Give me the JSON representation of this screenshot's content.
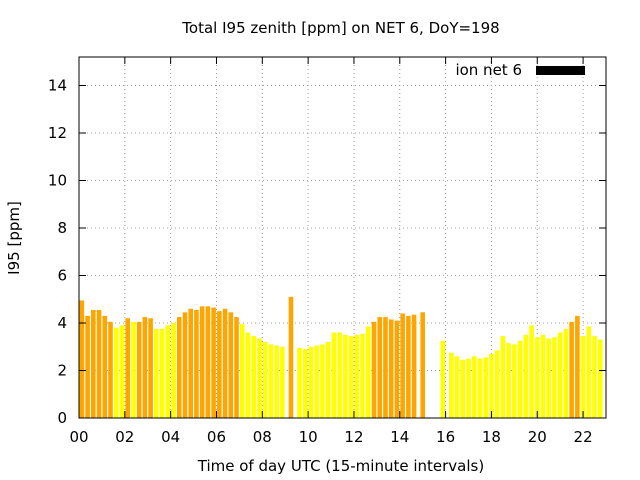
{
  "chart_data": {
    "type": "bar",
    "title": "Total I95 zenith [ppm] on NET 6, DoY=198",
    "xlabel": "Time of day UTC (15-minute intervals)",
    "ylabel": "I95 [ppm]",
    "xlim": [
      0,
      23
    ],
    "ylim": [
      0,
      15.2
    ],
    "grid": true,
    "legend_position": "top-right",
    "x_ticks": [
      {
        "value": 0,
        "label": "00"
      },
      {
        "value": 2,
        "label": "02"
      },
      {
        "value": 4,
        "label": "04"
      },
      {
        "value": 6,
        "label": "06"
      },
      {
        "value": 8,
        "label": "08"
      },
      {
        "value": 10,
        "label": "10"
      },
      {
        "value": 12,
        "label": "12"
      },
      {
        "value": 14,
        "label": "14"
      },
      {
        "value": 16,
        "label": "16"
      },
      {
        "value": 18,
        "label": "18"
      },
      {
        "value": 20,
        "label": "20"
      },
      {
        "value": 22,
        "label": "22"
      }
    ],
    "y_ticks": [
      {
        "value": 0,
        "label": "0"
      },
      {
        "value": 2,
        "label": "2"
      },
      {
        "value": 4,
        "label": "4"
      },
      {
        "value": 6,
        "label": "6"
      },
      {
        "value": 8,
        "label": "8"
      },
      {
        "value": 10,
        "label": "10"
      },
      {
        "value": 12,
        "label": "12"
      },
      {
        "value": 14,
        "label": "14"
      }
    ],
    "legend": {
      "label": "ion net 6",
      "color": "#000000"
    },
    "colors": {
      "orange": "#FFA500",
      "yellow": "#FFFF00"
    },
    "bars": [
      {
        "x": 0.0,
        "value": 3.9,
        "color": "yellow"
      },
      {
        "x": 0.125,
        "value": 4.95,
        "color": "orange"
      },
      {
        "x": 0.375,
        "value": 4.3,
        "color": "orange"
      },
      {
        "x": 0.625,
        "value": 4.55,
        "color": "orange"
      },
      {
        "x": 0.875,
        "value": 4.55,
        "color": "orange"
      },
      {
        "x": 1.125,
        "value": 4.3,
        "color": "orange"
      },
      {
        "x": 1.375,
        "value": 4.05,
        "color": "orange"
      },
      {
        "x": 1.625,
        "value": 3.8,
        "color": "yellow"
      },
      {
        "x": 1.875,
        "value": 3.9,
        "color": "yellow"
      },
      {
        "x": 2.125,
        "value": 4.2,
        "color": "orange"
      },
      {
        "x": 2.375,
        "value": 4.05,
        "color": "yellow"
      },
      {
        "x": 2.625,
        "value": 4.05,
        "color": "orange"
      },
      {
        "x": 2.875,
        "value": 4.25,
        "color": "orange"
      },
      {
        "x": 3.125,
        "value": 4.2,
        "color": "orange"
      },
      {
        "x": 3.375,
        "value": 3.75,
        "color": "yellow"
      },
      {
        "x": 3.625,
        "value": 3.75,
        "color": "yellow"
      },
      {
        "x": 3.875,
        "value": 3.9,
        "color": "yellow"
      },
      {
        "x": 4.125,
        "value": 4.0,
        "color": "yellow"
      },
      {
        "x": 4.375,
        "value": 4.25,
        "color": "orange"
      },
      {
        "x": 4.625,
        "value": 4.45,
        "color": "orange"
      },
      {
        "x": 4.875,
        "value": 4.6,
        "color": "orange"
      },
      {
        "x": 5.125,
        "value": 4.55,
        "color": "orange"
      },
      {
        "x": 5.375,
        "value": 4.7,
        "color": "orange"
      },
      {
        "x": 5.625,
        "value": 4.7,
        "color": "orange"
      },
      {
        "x": 5.875,
        "value": 4.65,
        "color": "orange"
      },
      {
        "x": 6.125,
        "value": 4.5,
        "color": "orange"
      },
      {
        "x": 6.375,
        "value": 4.6,
        "color": "orange"
      },
      {
        "x": 6.625,
        "value": 4.45,
        "color": "orange"
      },
      {
        "x": 6.875,
        "value": 4.25,
        "color": "orange"
      },
      {
        "x": 7.125,
        "value": 3.95,
        "color": "yellow"
      },
      {
        "x": 7.375,
        "value": 3.6,
        "color": "yellow"
      },
      {
        "x": 7.625,
        "value": 3.45,
        "color": "yellow"
      },
      {
        "x": 7.875,
        "value": 3.35,
        "color": "yellow"
      },
      {
        "x": 8.125,
        "value": 3.2,
        "color": "yellow"
      },
      {
        "x": 8.375,
        "value": 3.1,
        "color": "yellow"
      },
      {
        "x": 8.625,
        "value": 3.05,
        "color": "yellow"
      },
      {
        "x": 8.875,
        "value": 3.0,
        "color": "yellow"
      },
      {
        "x": 9.25,
        "value": 5.1,
        "color": "orange"
      },
      {
        "x": 9.625,
        "value": 2.95,
        "color": "yellow"
      },
      {
        "x": 9.875,
        "value": 2.9,
        "color": "yellow"
      },
      {
        "x": 10.125,
        "value": 3.0,
        "color": "yellow"
      },
      {
        "x": 10.375,
        "value": 3.05,
        "color": "yellow"
      },
      {
        "x": 10.625,
        "value": 3.1,
        "color": "yellow"
      },
      {
        "x": 10.875,
        "value": 3.2,
        "color": "yellow"
      },
      {
        "x": 11.125,
        "value": 3.6,
        "color": "yellow"
      },
      {
        "x": 11.375,
        "value": 3.6,
        "color": "yellow"
      },
      {
        "x": 11.625,
        "value": 3.5,
        "color": "yellow"
      },
      {
        "x": 11.875,
        "value": 3.45,
        "color": "yellow"
      },
      {
        "x": 12.125,
        "value": 3.5,
        "color": "yellow"
      },
      {
        "x": 12.375,
        "value": 3.55,
        "color": "yellow"
      },
      {
        "x": 12.625,
        "value": 3.85,
        "color": "yellow"
      },
      {
        "x": 12.875,
        "value": 4.05,
        "color": "orange"
      },
      {
        "x": 13.125,
        "value": 4.25,
        "color": "orange"
      },
      {
        "x": 13.375,
        "value": 4.25,
        "color": "orange"
      },
      {
        "x": 13.625,
        "value": 4.15,
        "color": "orange"
      },
      {
        "x": 13.875,
        "value": 4.1,
        "color": "orange"
      },
      {
        "x": 14.125,
        "value": 4.4,
        "color": "orange"
      },
      {
        "x": 14.375,
        "value": 4.3,
        "color": "orange"
      },
      {
        "x": 14.625,
        "value": 4.35,
        "color": "orange"
      },
      {
        "x": 15.0,
        "value": 4.45,
        "color": "orange"
      },
      {
        "x": 15.875,
        "value": 3.25,
        "color": "yellow"
      },
      {
        "x": 16.25,
        "value": 2.75,
        "color": "yellow"
      },
      {
        "x": 16.5,
        "value": 2.6,
        "color": "yellow"
      },
      {
        "x": 16.75,
        "value": 2.45,
        "color": "yellow"
      },
      {
        "x": 17.0,
        "value": 2.5,
        "color": "yellow"
      },
      {
        "x": 17.25,
        "value": 2.6,
        "color": "yellow"
      },
      {
        "x": 17.5,
        "value": 2.5,
        "color": "yellow"
      },
      {
        "x": 17.75,
        "value": 2.55,
        "color": "yellow"
      },
      {
        "x": 18.0,
        "value": 2.7,
        "color": "yellow"
      },
      {
        "x": 18.25,
        "value": 2.85,
        "color": "yellow"
      },
      {
        "x": 18.5,
        "value": 3.45,
        "color": "yellow"
      },
      {
        "x": 18.75,
        "value": 3.15,
        "color": "yellow"
      },
      {
        "x": 19.0,
        "value": 3.1,
        "color": "yellow"
      },
      {
        "x": 19.25,
        "value": 3.25,
        "color": "yellow"
      },
      {
        "x": 19.5,
        "value": 3.5,
        "color": "yellow"
      },
      {
        "x": 19.75,
        "value": 3.9,
        "color": "yellow"
      },
      {
        "x": 20.0,
        "value": 3.4,
        "color": "yellow"
      },
      {
        "x": 20.25,
        "value": 3.5,
        "color": "yellow"
      },
      {
        "x": 20.5,
        "value": 3.35,
        "color": "yellow"
      },
      {
        "x": 20.75,
        "value": 3.4,
        "color": "yellow"
      },
      {
        "x": 21.0,
        "value": 3.6,
        "color": "yellow"
      },
      {
        "x": 21.25,
        "value": 3.75,
        "color": "yellow"
      },
      {
        "x": 21.5,
        "value": 4.05,
        "color": "orange"
      },
      {
        "x": 21.75,
        "value": 4.3,
        "color": "orange"
      },
      {
        "x": 22.0,
        "value": 3.45,
        "color": "yellow"
      },
      {
        "x": 22.25,
        "value": 3.85,
        "color": "yellow"
      },
      {
        "x": 22.5,
        "value": 3.45,
        "color": "yellow"
      },
      {
        "x": 22.75,
        "value": 3.3,
        "color": "yellow"
      }
    ]
  }
}
